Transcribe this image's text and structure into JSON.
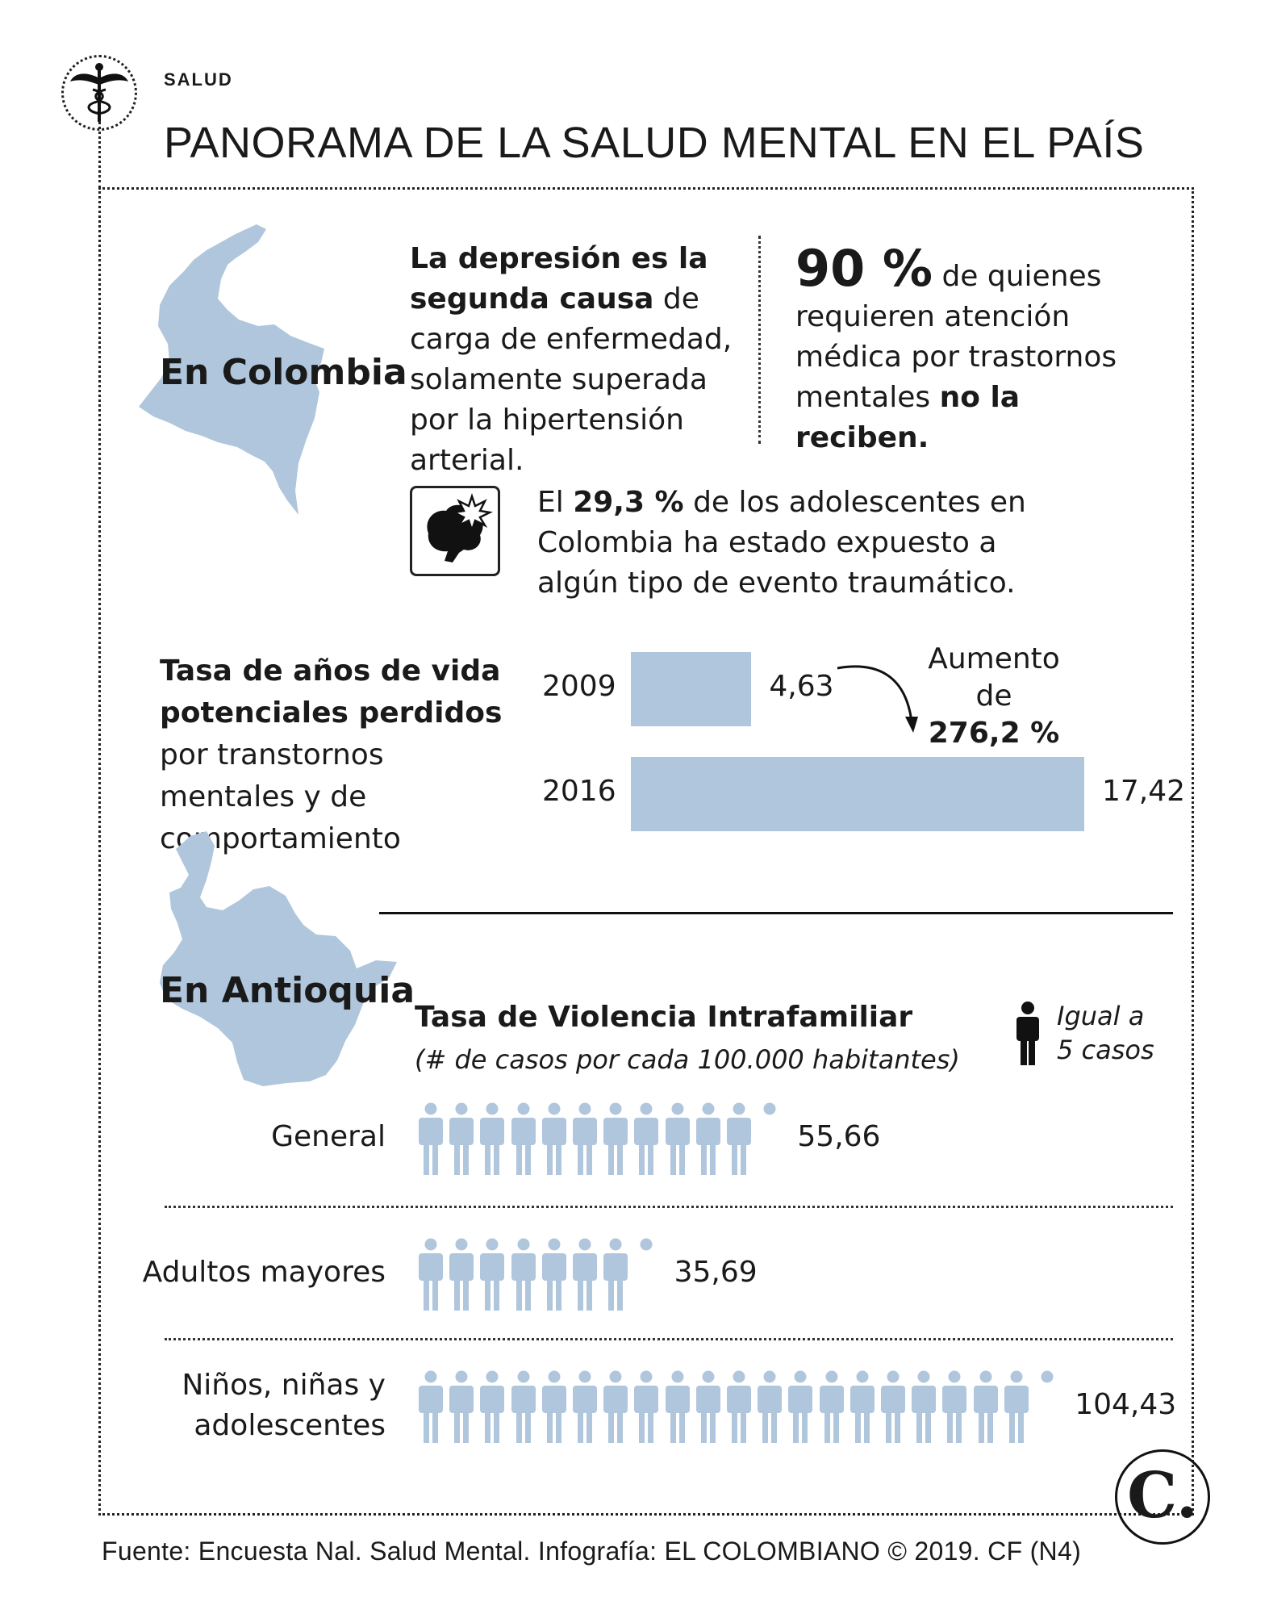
{
  "header": {
    "section": "SALUD",
    "title": "PANORAMA DE LA SALUD MENTAL EN EL PAÍS"
  },
  "colombia": {
    "region_label": "En Colombia",
    "depression": {
      "bold": "La depresión es la segunda causa",
      "rest": " de carga de enfermedad, solamente superada por la hipertensión arterial."
    },
    "care": {
      "pct": "90 %",
      "mid": " de quienes requieren atención médica por trastornos mentales ",
      "bold_end": "no la reciben."
    },
    "trauma": {
      "pre": "El ",
      "pct": "29,3 %",
      "rest": " de los adolescentes en Colombia ha estado expuesto a algún tipo de evento traumático."
    }
  },
  "yll": {
    "label_bold": "Tasa de años de vida potenciales perdidos",
    "label_rest": " por transtornos mentales y de comportamiento",
    "increase_label": "Aumento de",
    "increase_value": "276,2 %"
  },
  "antioquia": {
    "region_label": "En Antioquia",
    "chart_title": "Tasa de Violencia Intrafamiliar",
    "chart_subtitle": "(# de casos por cada 100.000 habitantes)",
    "legend_line1": "Igual a",
    "legend_line2": "5 casos"
  },
  "chart_data": [
    {
      "type": "bar",
      "categories": [
        "2009",
        "2016"
      ],
      "values": [
        4.63,
        17.42
      ],
      "value_labels": [
        "4,63",
        "17,42"
      ],
      "title": "",
      "xlabel": "",
      "ylabel": ""
    },
    {
      "type": "bar",
      "categories": [
        "General",
        "Adultos mayores",
        "Niños, niñas y adolescentes"
      ],
      "category_lines": [
        [
          "General"
        ],
        [
          "Adultos mayores"
        ],
        [
          "Niños, niñas y",
          "adolescentes"
        ]
      ],
      "values": [
        55.66,
        35.69,
        104.43
      ],
      "value_labels": [
        "55,66",
        "35,69",
        "104,43"
      ],
      "unit_per_icon": 5,
      "title": "Tasa de Violencia Intrafamiliar",
      "subtitle": "(# de casos por cada 100.000 habitantes)"
    }
  ],
  "colors": {
    "bar": "#b0c6dc",
    "map": "#b0c6dc",
    "ink": "#1a1a1a"
  },
  "icons": {
    "emblem": "caduceus-icon",
    "brain": "brain-explosion-icon",
    "person": "person-icon",
    "map_colombia": "colombia-map-icon",
    "map_antioquia": "antioquia-map-icon",
    "logo": "el-colombiano-logo"
  },
  "footer": {
    "source": "Fuente: Encuesta Nal. Salud Mental. Infografía: EL COLOMBIANO © 2019. CF (N4)",
    "logo_letter": "C."
  }
}
